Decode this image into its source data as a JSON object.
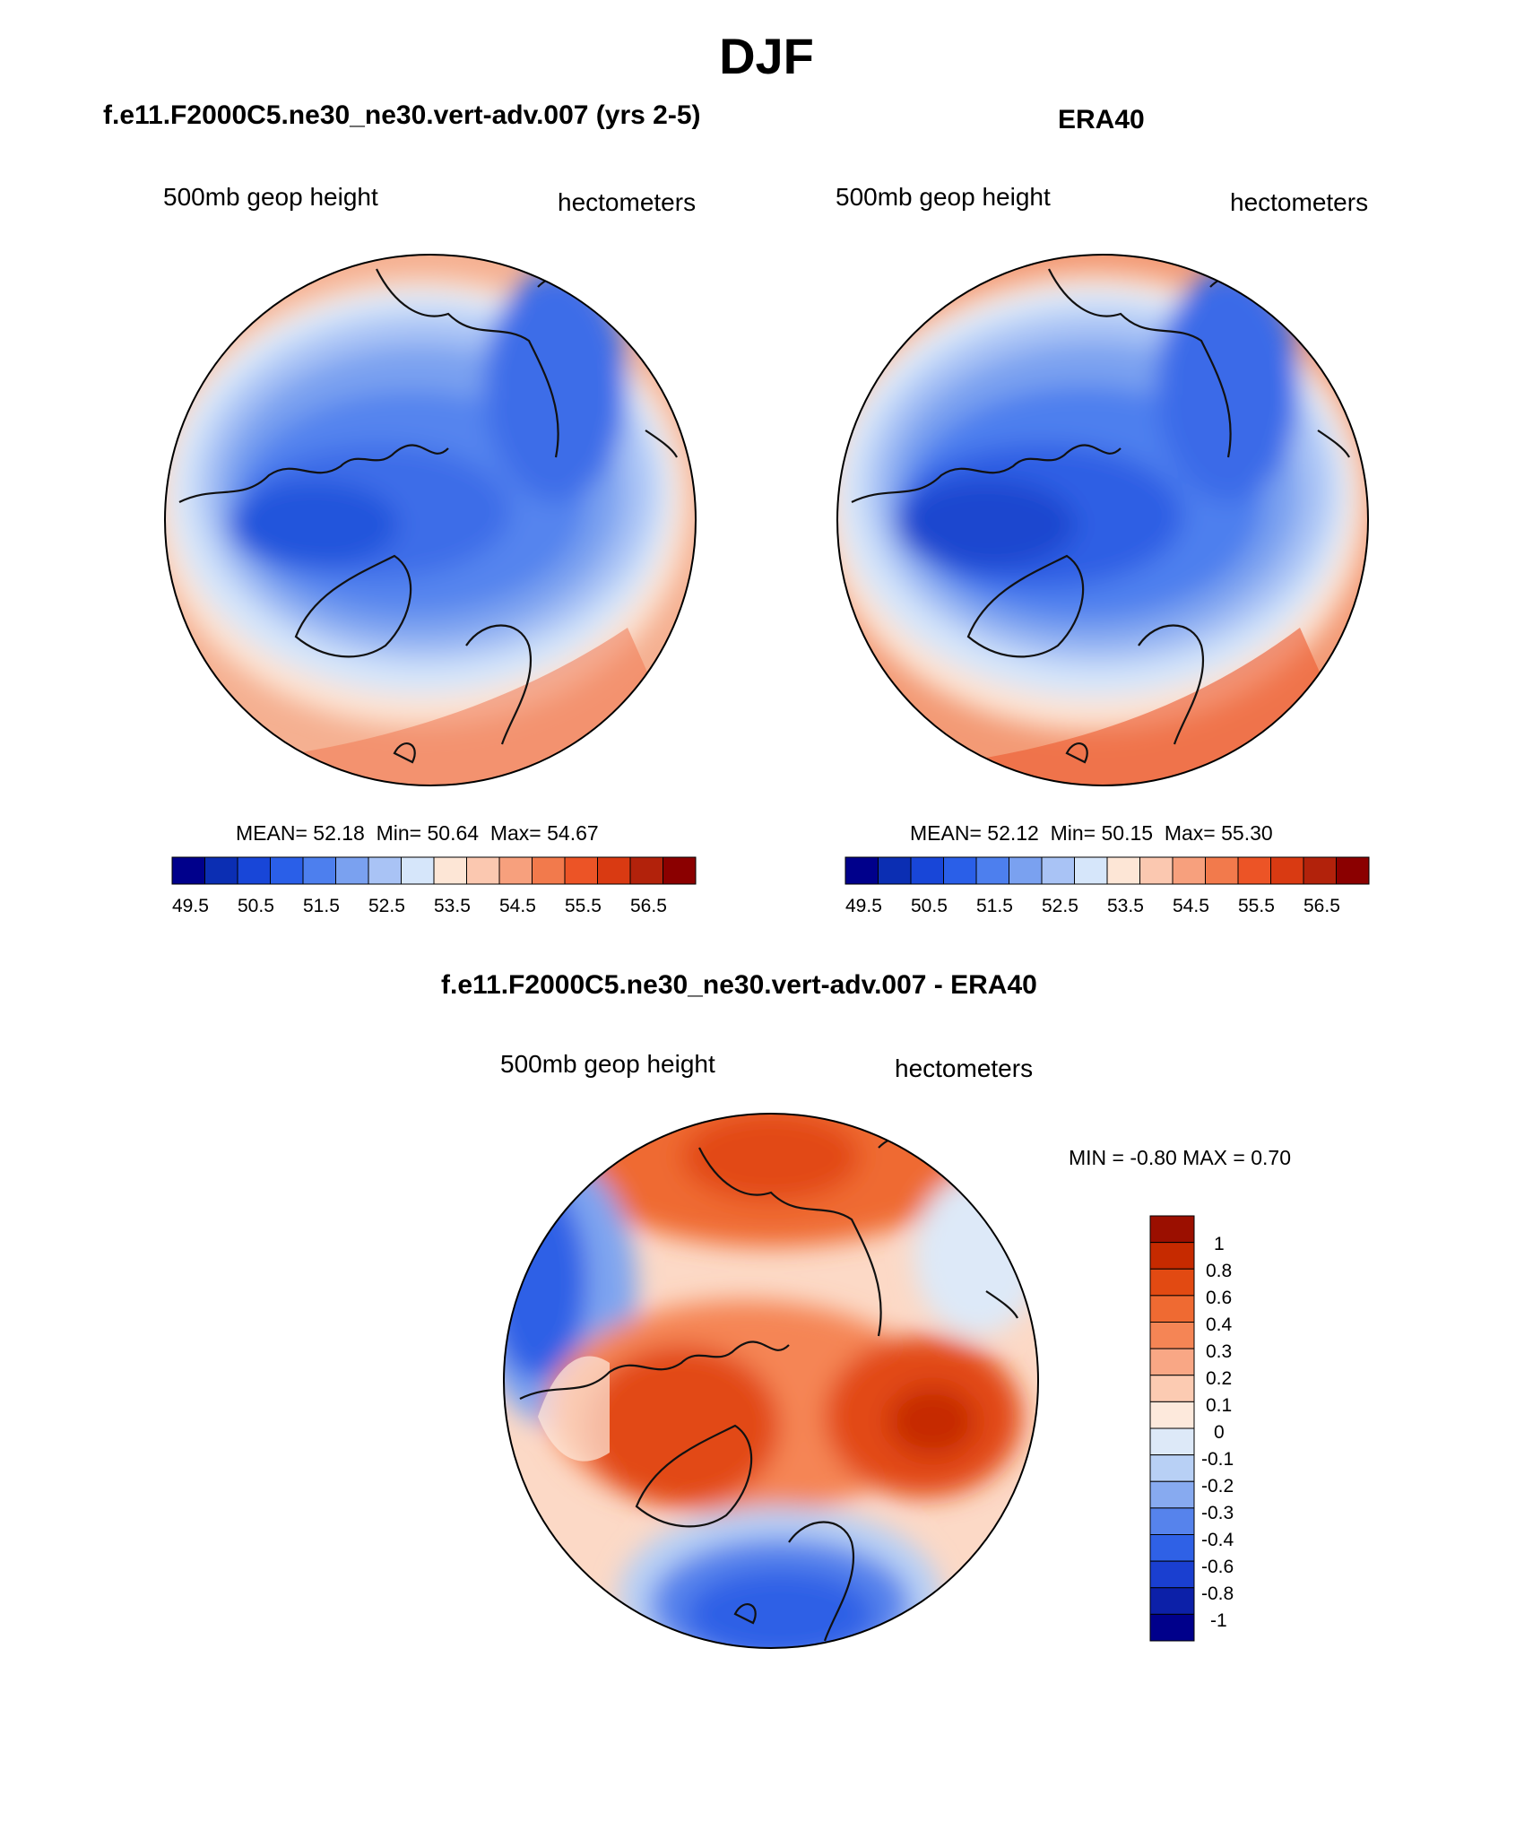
{
  "figure": {
    "title": "DJF"
  },
  "panels": [
    {
      "title": "f.e11.F2000C5.ne30_ne30.vert-adv.007 (yrs 2-5)",
      "left_label": "500mb geop height",
      "right_label": "hectometers",
      "stats": {
        "mean": "MEAN=  52.18",
        "min": "Min=  50.64",
        "max": "Max=  54.67"
      },
      "colorbar": {
        "ticks": [
          "49.5",
          "50.5",
          "51.5",
          "52.5",
          "53.5",
          "54.5",
          "55.5",
          "56.5"
        ],
        "colors": [
          "#00008b",
          "#0b2eb3",
          "#1846d8",
          "#2a5fe8",
          "#4d7fee",
          "#7aa1f0",
          "#a9c3f5",
          "#d6e6fa",
          "#fde6d6",
          "#fbc8b0",
          "#f7a07d",
          "#f27a4c",
          "#ec5426",
          "#d93a12",
          "#b2220b",
          "#8b0000"
        ]
      }
    },
    {
      "title": "ERA40",
      "left_label": "500mb geop height",
      "right_label": "hectometers",
      "stats": {
        "mean": "MEAN=  52.12",
        "min": "Min=  50.15",
        "max": "Max=  55.30"
      },
      "colorbar": {
        "ticks": [
          "49.5",
          "50.5",
          "51.5",
          "52.5",
          "53.5",
          "54.5",
          "55.5",
          "56.5"
        ],
        "colors": [
          "#00008b",
          "#0b2eb3",
          "#1846d8",
          "#2a5fe8",
          "#4d7fee",
          "#7aa1f0",
          "#a9c3f5",
          "#d6e6fa",
          "#fde6d6",
          "#fbc8b0",
          "#f7a07d",
          "#f27a4c",
          "#ec5426",
          "#d93a12",
          "#b2220b",
          "#8b0000"
        ]
      }
    }
  ],
  "difference": {
    "title": "f.e11.F2000C5.ne30_ne30.vert-adv.007 - ERA40",
    "left_label": "500mb geop height",
    "right_label": "hectometers",
    "minmax": "MIN =  -0.80 MAX =   0.70",
    "colorbar": {
      "ticks": [
        "1",
        "0.8",
        "0.6",
        "0.4",
        "0.3",
        "0.2",
        "0.1",
        "0",
        "-0.1",
        "-0.2",
        "-0.3",
        "-0.4",
        "-0.6",
        "-0.8",
        "-1"
      ],
      "colors": [
        "#9b0f00",
        "#c62a00",
        "#e24a12",
        "#ef6a32",
        "#f58555",
        "#f9a785",
        "#fccbb2",
        "#fde9dc",
        "#dde9f8",
        "#b8d0f5",
        "#87aaf0",
        "#5683ec",
        "#2f61e6",
        "#1a3fd0",
        "#0c20a8",
        "#00008b"
      ]
    }
  }
}
